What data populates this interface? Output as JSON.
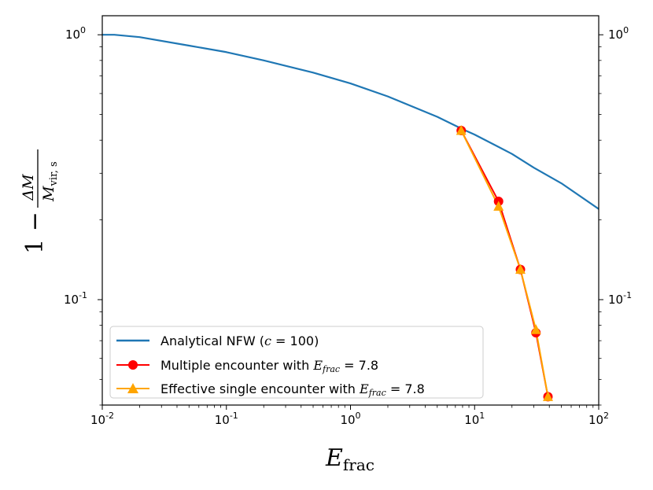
{
  "chart_data": {
    "type": "line",
    "xscale": "log",
    "yscale": "log",
    "xlim": [
      0.01,
      100
    ],
    "ylim": [
      0.04,
      1.18
    ],
    "xticks": [
      {
        "value": 0.01,
        "base": "10",
        "exp": "-2"
      },
      {
        "value": 0.1,
        "base": "10",
        "exp": "-1"
      },
      {
        "value": 1,
        "base": "10",
        "exp": "0"
      },
      {
        "value": 10,
        "base": "10",
        "exp": "1"
      },
      {
        "value": 100,
        "base": "10",
        "exp": "2"
      }
    ],
    "yticks": [
      {
        "value": 0.1,
        "base": "10",
        "exp": "-1"
      },
      {
        "value": 1,
        "base": "10",
        "exp": "0"
      }
    ],
    "xlabel": {
      "main": "E",
      "sub": "frac"
    },
    "ylabel": {
      "lead": "1 −",
      "num": "ΔM",
      "den": "M",
      "den_sub": "vir, s"
    },
    "legend": {
      "location": "lower-left",
      "entries": [
        {
          "label": "Analytical NFW (",
          "math": "c",
          "tail": " = 100)",
          "color": "#1f77b4",
          "marker": "none"
        },
        {
          "label": "Multiple encounter with ",
          "math": "E",
          "sub": "frac",
          "tail": " = 7.8",
          "color": "#ff0000",
          "marker": "circle"
        },
        {
          "label": "Effective single encounter with ",
          "math": "E",
          "sub": "frac",
          "tail": " = 7.8",
          "color": "#ffa500",
          "marker": "triangle"
        }
      ]
    },
    "series": [
      {
        "name": "Analytical NFW (c = 100)",
        "color": "#1f77b4",
        "marker": "none",
        "x": [
          0.01,
          0.0125,
          0.02,
          0.05,
          0.1,
          0.2,
          0.5,
          1,
          2,
          5,
          8,
          10,
          20,
          30,
          50,
          100
        ],
        "y": [
          1.0,
          1.0,
          0.98,
          0.91,
          0.86,
          0.8,
          0.72,
          0.655,
          0.585,
          0.49,
          0.44,
          0.42,
          0.355,
          0.315,
          0.275,
          0.22
        ]
      },
      {
        "name": "Multiple encounter with E_frac = 7.8",
        "color": "#ff0000",
        "marker": "circle",
        "x": [
          7.8,
          15.6,
          23.4,
          31.2,
          39.0
        ],
        "y": [
          0.435,
          0.235,
          0.13,
          0.075,
          0.043
        ]
      },
      {
        "name": "Effective single encounter with E_frac = 7.8",
        "color": "#ffa500",
        "marker": "triangle",
        "x": [
          7.8,
          15.6,
          23.4,
          31.2,
          39.0
        ],
        "y": [
          0.435,
          0.225,
          0.13,
          0.077,
          0.043
        ]
      }
    ]
  }
}
